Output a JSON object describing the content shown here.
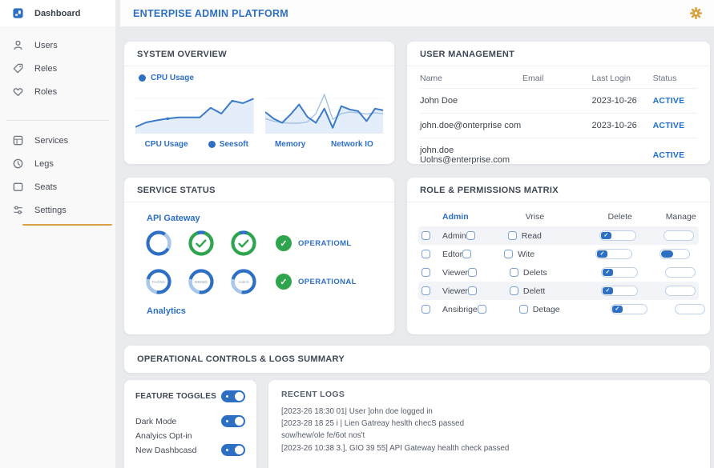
{
  "colors": {
    "accent": "#2d6fc3",
    "green": "#2ea44f",
    "gold": "#d9a23f",
    "line": "#3c7bc8",
    "light_line": "#a5c4e6",
    "area_fill": "#e4eefa",
    "active_link": "#1f6fd0",
    "background": "#e9ebee"
  },
  "header": {
    "title": "ENTERPISE ADMIN PLATFORM",
    "gear_icon": "gear-icon"
  },
  "sidebar": {
    "groups": [
      {
        "items": [
          {
            "label": "Dashboard",
            "icon": "dashboard-icon",
            "active": true
          },
          {
            "label": "Users",
            "icon": "users-icon"
          },
          {
            "label": "Reles",
            "icon": "tag-icon"
          },
          {
            "label": "Roles",
            "icon": "heart-icon"
          }
        ]
      },
      {
        "items": [
          {
            "label": "Services",
            "icon": "services-icon"
          },
          {
            "label": "Legs",
            "icon": "clock-icon"
          },
          {
            "label": "Seats",
            "icon": "panel-icon"
          },
          {
            "label": "Settings",
            "icon": "sliders-icon",
            "underline": true
          }
        ]
      }
    ]
  },
  "system_overview": {
    "title": "SYSTEM OVERVIEW",
    "legend": "CPU Usage",
    "axis_labels": [
      "CPU Usage",
      "Seesoft",
      "Memory",
      "Network IO"
    ]
  },
  "chart_data": [
    {
      "type": "area",
      "title": "CPU Usage",
      "xlabel": "",
      "ylabel": "",
      "ylim": [
        0,
        100
      ],
      "grid": true,
      "series": [
        {
          "name": "CPU Usage",
          "values": [
            16,
            27,
            32,
            36,
            39,
            39,
            39,
            62,
            48,
            79,
            73,
            84
          ]
        }
      ],
      "marker_index": 3
    },
    {
      "type": "line",
      "title": "Memory / Network IO",
      "xlabel": "",
      "ylabel": "",
      "ylim": [
        0,
        100
      ],
      "grid": true,
      "series": [
        {
          "name": "Memory",
          "values": [
            52,
            36,
            26,
            46,
            70,
            40,
            26,
            60,
            14,
            66,
            58,
            54,
            30,
            60,
            56
          ]
        },
        {
          "name": "Network IO",
          "values": [
            36,
            30,
            26,
            25,
            25,
            28,
            48,
            94,
            34,
            48,
            52,
            50,
            47,
            50,
            48
          ]
        }
      ]
    }
  ],
  "user_management": {
    "title": "USER MANAGEMENT",
    "headers": [
      "Name",
      "Email",
      "Last Login",
      "Status"
    ],
    "rows": [
      {
        "name": "John Doe",
        "email": "",
        "last_login": "2023-10-26",
        "status": "ACTIVE"
      },
      {
        "name": "john.doe@onterprise com",
        "email": "",
        "last_login": "2023-10-26",
        "status": "ACTIVE"
      },
      {
        "name": "john.doe Uolns@enterprise.com",
        "email": "",
        "last_login": "",
        "status": "ACTIVE"
      }
    ]
  },
  "service_status": {
    "title": "SERVICE STATUS",
    "top_label": "API Gateway",
    "bottom_label": "Analytics",
    "rows": [
      {
        "circles": [
          {
            "kind": "ring",
            "label": ""
          },
          {
            "kind": "check",
            "label": ""
          },
          {
            "kind": "check",
            "label": ""
          }
        ],
        "badge": "OPERATIOML"
      },
      {
        "circles": [
          {
            "kind": "label",
            "label": "FAONS"
          },
          {
            "kind": "label",
            "label": "DBSBS"
          },
          {
            "kind": "label",
            "label": "AUKS"
          }
        ],
        "badge": "OPERATIONAL"
      }
    ]
  },
  "role_matrix": {
    "title": "ROLE & PERMISSIONS MATRIX",
    "headers": {
      "role": "Admin",
      "perm": "Vrise",
      "delete": "Delete",
      "manage": "Manage"
    },
    "rows": [
      {
        "role": "Admin",
        "perm": "Read",
        "manage_on": false,
        "shaded": true
      },
      {
        "role": "Edtor",
        "perm": "Wite",
        "manage_on": true,
        "shaded": false
      },
      {
        "role": "Viewer",
        "perm": "Delets",
        "manage_on": false,
        "shaded": false
      },
      {
        "role": "Viewer",
        "perm": "Delett",
        "manage_on": false,
        "shaded": true
      },
      {
        "role": "Ansibrige",
        "perm": "Detage",
        "manage_on": false,
        "shaded": false
      }
    ]
  },
  "ops_summary": {
    "title": "OPERATIONAL CONTROLS & LOGS SUMMARY"
  },
  "feature_toggles": {
    "title": "FEATURE TOGGLES",
    "title_toggle_on": true,
    "items": [
      {
        "label": "Dark Mode",
        "toggle": true
      },
      {
        "label": "Analyics Opt-in",
        "toggle": false
      },
      {
        "label": "New Dashbcasd",
        "toggle": true
      }
    ]
  },
  "recent_logs": {
    "title": "RECENT LOGS",
    "lines": [
      "[2023-26 18:30 01| User ]ohn doe logged in",
      "[2023-28 18 25 i | Lien Gatreay heslth checS passed",
      "sow/hew/ole fe/6ot nos't",
      "[2023-26 10:38 3.], GIO 39 55] API Gateway health check passed"
    ]
  }
}
